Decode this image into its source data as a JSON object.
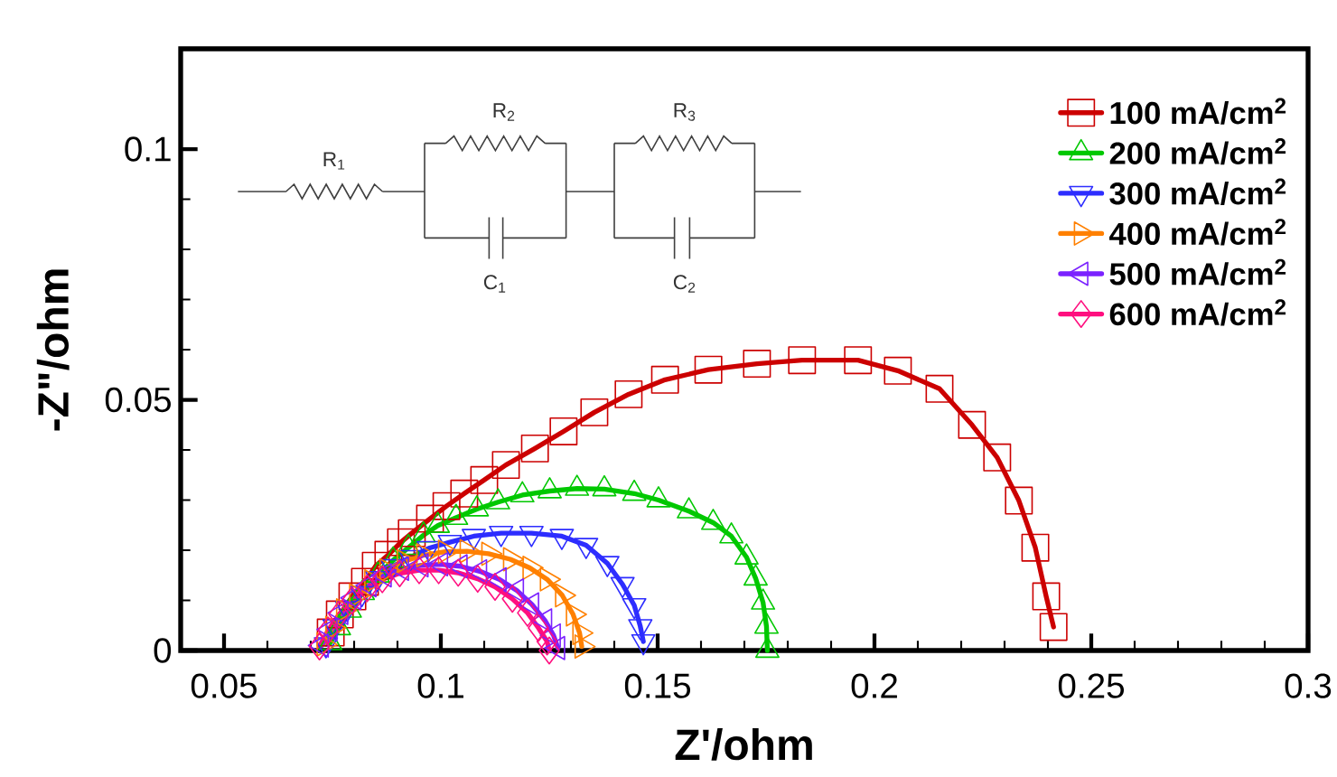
{
  "chart_data": {
    "type": "line",
    "xlabel": "Z'/ohm",
    "ylabel": "-Z\"/ohm",
    "xlim": [
      0.04,
      0.3
    ],
    "ylim": [
      0,
      0.12
    ],
    "xticks": [
      0.05,
      0.1,
      0.15,
      0.2,
      0.25,
      0.3
    ],
    "yticks": [
      0,
      0.05,
      0.1
    ],
    "legend": "top right",
    "annotations": [
      "R$_{1}$",
      "R$_{2}$",
      "R$_{3}$",
      "C$_{1}$",
      "C$_{2}$"
    ],
    "series": [
      {
        "name": "100 mA/cm$^{2}$",
        "color": "#cc0000",
        "marker": "square",
        "x": [
          0.0746,
          0.0767,
          0.0796,
          0.0825,
          0.085,
          0.0879,
          0.0908,
          0.0933,
          0.0975,
          0.1013,
          0.1054,
          0.11,
          0.115,
          0.1217,
          0.1283,
          0.1354,
          0.1433,
          0.1517,
          0.1617,
          0.1729,
          0.1833,
          0.1962,
          0.2054,
          0.215,
          0.2225,
          0.2283,
          0.2333,
          0.2371,
          0.2396,
          0.2413
        ],
        "values": [
          0.0036,
          0.0072,
          0.0108,
          0.0137,
          0.0169,
          0.0191,
          0.0216,
          0.0234,
          0.0263,
          0.0288,
          0.0313,
          0.034,
          0.037,
          0.0403,
          0.0437,
          0.0475,
          0.0511,
          0.054,
          0.056,
          0.0572,
          0.0579,
          0.0579,
          0.0558,
          0.0522,
          0.045,
          0.0385,
          0.0299,
          0.0205,
          0.0108,
          0.0047
        ]
      },
      {
        "name": "200 mA/cm$^{2}$",
        "color": "#00c800",
        "marker": "triangle",
        "x": [
          0.0745,
          0.0765,
          0.079,
          0.082,
          0.0855,
          0.089,
          0.0925,
          0.096,
          0.0993,
          0.1035,
          0.1083,
          0.1132,
          0.1188,
          0.1251,
          0.1314,
          0.1377,
          0.1446,
          0.1502,
          0.1572,
          0.1628,
          0.167,
          0.1705,
          0.1726,
          0.1743,
          0.1751,
          0.1753
        ],
        "values": [
          0.0015,
          0.0045,
          0.008,
          0.0115,
          0.015,
          0.018,
          0.0205,
          0.023,
          0.0249,
          0.0265,
          0.0282,
          0.0296,
          0.031,
          0.0318,
          0.0323,
          0.0322,
          0.0313,
          0.03,
          0.0278,
          0.0255,
          0.0228,
          0.0186,
          0.0144,
          0.0096,
          0.0048,
          0.0
        ]
      },
      {
        "name": "300 mA/cm$^{2}$",
        "color": "#2d2dff",
        "marker": "triangle-down",
        "x": [
          0.0735,
          0.0755,
          0.0784,
          0.0818,
          0.0853,
          0.0888,
          0.093,
          0.0972,
          0.1021,
          0.1076,
          0.1139,
          0.1209,
          0.1279,
          0.1335,
          0.1384,
          0.1419,
          0.1446,
          0.146,
          0.1467
        ],
        "values": [
          0.0012,
          0.0048,
          0.0084,
          0.0114,
          0.0144,
          0.0168,
          0.0186,
          0.0204,
          0.0216,
          0.0228,
          0.0234,
          0.0234,
          0.0228,
          0.021,
          0.0174,
          0.0132,
          0.009,
          0.0048,
          0.0018
        ]
      },
      {
        "name": "400 mA/cm$^{2}$",
        "color": "#ff8000",
        "marker": "triangle-right",
        "x": [
          0.073,
          0.075,
          0.0775,
          0.0805,
          0.084,
          0.0875,
          0.0915,
          0.096,
          0.101,
          0.106,
          0.111,
          0.116,
          0.1205,
          0.1245,
          0.128,
          0.1305,
          0.132,
          0.1325
        ],
        "values": [
          0.0012,
          0.0045,
          0.008,
          0.011,
          0.0138,
          0.016,
          0.0178,
          0.019,
          0.0197,
          0.0198,
          0.0193,
          0.0182,
          0.0165,
          0.0142,
          0.011,
          0.0072,
          0.0035,
          0.0008
        ]
      },
      {
        "name": "500 mA/cm$^{2}$",
        "color": "#7b22ff",
        "marker": "triangle-left",
        "x": [
          0.0725,
          0.0745,
          0.077,
          0.08,
          0.0835,
          0.087,
          0.091,
          0.0955,
          0.1,
          0.1045,
          0.109,
          0.1135,
          0.1175,
          0.121,
          0.124,
          0.126,
          0.127
        ],
        "values": [
          0.001,
          0.0042,
          0.0075,
          0.0105,
          0.013,
          0.015,
          0.0163,
          0.017,
          0.0172,
          0.0168,
          0.0158,
          0.0142,
          0.012,
          0.0092,
          0.006,
          0.003,
          0.0005
        ]
      },
      {
        "name": "600 mA/cm$^{2}$",
        "color": "#ff0f7f",
        "marker": "diamond",
        "x": [
          0.072,
          0.074,
          0.0765,
          0.0795,
          0.083,
          0.0865,
          0.0905,
          0.095,
          0.0995,
          0.104,
          0.1085,
          0.1125,
          0.1165,
          0.12,
          0.1225,
          0.1245,
          0.125
        ],
        "values": [
          0.0008,
          0.004,
          0.0072,
          0.01,
          0.0124,
          0.0142,
          0.0154,
          0.016,
          0.016,
          0.0155,
          0.0143,
          0.0127,
          0.0103,
          0.0075,
          0.0045,
          0.0018,
          0.0
        ]
      }
    ]
  }
}
